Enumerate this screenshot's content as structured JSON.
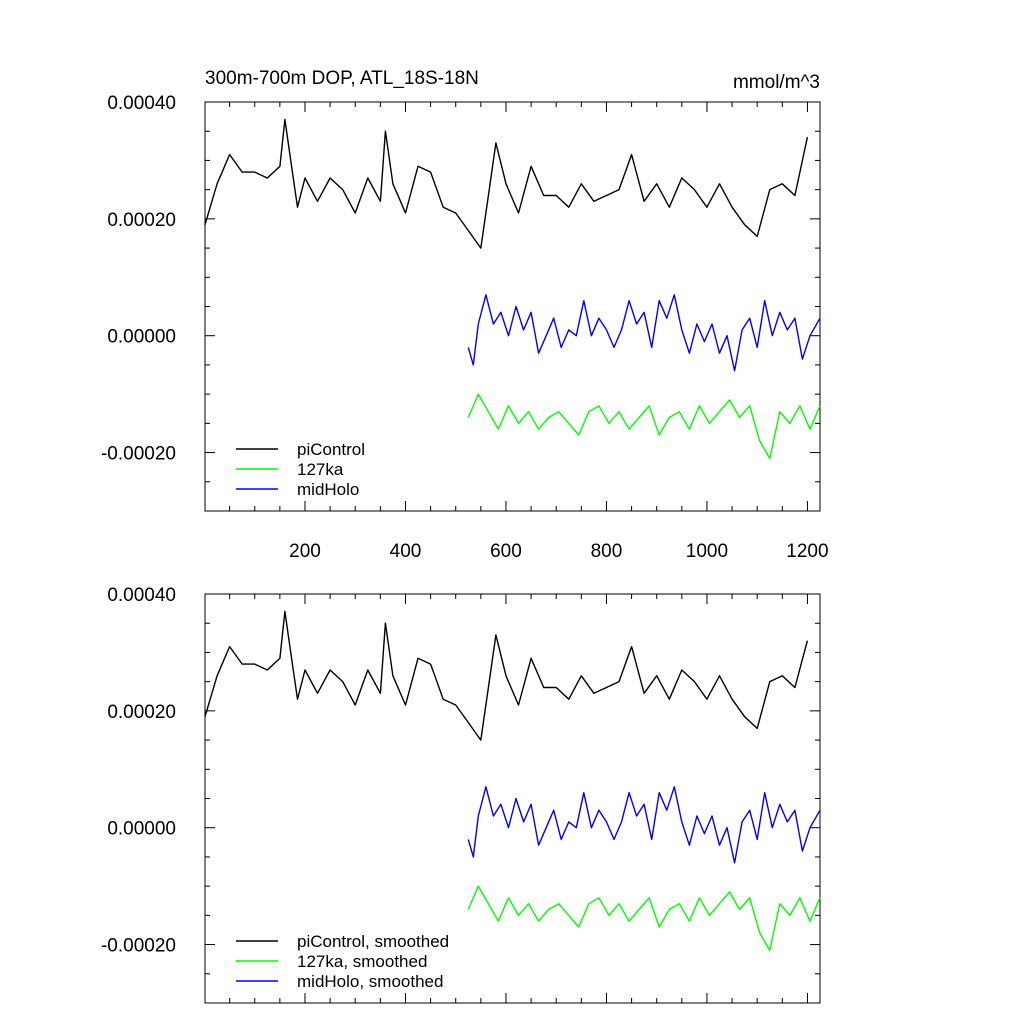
{
  "figure": {
    "title": "300m-700m DOP, ATL_18S-18N",
    "units": "mmol/m^3"
  },
  "chart_data": [
    {
      "type": "line",
      "title": "300m-700m DOP, ATL_18S-18N",
      "units_label": "mmol/m^3",
      "xlim": [
        1,
        1225
      ],
      "ylim": [
        -0.0003,
        0.0004
      ],
      "x_ticks": [
        200,
        400,
        600,
        800,
        1000,
        1200
      ],
      "x_tick_labels": [
        "200",
        "400",
        "600",
        "800",
        "1000",
        "1200"
      ],
      "y_ticks": [
        0.0004,
        0.0002,
        0.0,
        -0.0002
      ],
      "y_tick_labels": [
        "0.00040",
        "0.00020",
        "0.00000",
        "-0.00020"
      ],
      "grid": false,
      "legend_position": "bottom-left",
      "series": [
        {
          "name": "piControl",
          "color": "#000000",
          "x": [
            1,
            25,
            50,
            75,
            100,
            125,
            150,
            160,
            175,
            185,
            200,
            225,
            250,
            275,
            300,
            325,
            350,
            360,
            375,
            400,
            425,
            450,
            475,
            500,
            525,
            550,
            565,
            580,
            600,
            625,
            650,
            675,
            700,
            725,
            750,
            775,
            800,
            825,
            850,
            875,
            900,
            925,
            950,
            975,
            1000,
            1025,
            1050,
            1075,
            1100,
            1125,
            1150,
            1175,
            1200
          ],
          "y": [
            0.00019,
            0.00026,
            0.00031,
            0.00028,
            0.00028,
            0.00027,
            0.00029,
            0.00037,
            0.00028,
            0.00022,
            0.00027,
            0.00023,
            0.00027,
            0.00025,
            0.00021,
            0.00027,
            0.00023,
            0.00035,
            0.00026,
            0.00021,
            0.00029,
            0.00028,
            0.00022,
            0.00021,
            0.00018,
            0.00015,
            0.00024,
            0.00033,
            0.00026,
            0.00021,
            0.00029,
            0.00024,
            0.00024,
            0.00022,
            0.00026,
            0.00023,
            0.00024,
            0.00025,
            0.00031,
            0.00023,
            0.00026,
            0.00022,
            0.00027,
            0.00025,
            0.00022,
            0.00026,
            0.00022,
            0.00019,
            0.00017,
            0.00025,
            0.00026,
            0.00024,
            0.00034
          ]
        },
        {
          "name": "127ka",
          "color": "#00ff00",
          "x": [
            525,
            545,
            565,
            585,
            605,
            625,
            645,
            665,
            685,
            705,
            725,
            745,
            765,
            785,
            805,
            825,
            845,
            865,
            885,
            905,
            925,
            945,
            965,
            985,
            1005,
            1025,
            1045,
            1065,
            1085,
            1105,
            1125,
            1145,
            1165,
            1185,
            1205,
            1225
          ],
          "y": [
            -0.00014,
            -0.0001,
            -0.00013,
            -0.00016,
            -0.00012,
            -0.00015,
            -0.00013,
            -0.00016,
            -0.00014,
            -0.00013,
            -0.00015,
            -0.00017,
            -0.00013,
            -0.00012,
            -0.00015,
            -0.00013,
            -0.00016,
            -0.00014,
            -0.00012,
            -0.00017,
            -0.00014,
            -0.00013,
            -0.00016,
            -0.00012,
            -0.00015,
            -0.00013,
            -0.00011,
            -0.00014,
            -0.00012,
            -0.00018,
            -0.00021,
            -0.00013,
            -0.00015,
            -0.00012,
            -0.00016,
            -0.00012
          ]
        },
        {
          "name": "midHolo",
          "color": "#0000ff",
          "x": [
            525,
            535,
            545,
            560,
            575,
            590,
            605,
            620,
            635,
            650,
            665,
            680,
            695,
            710,
            725,
            740,
            755,
            770,
            785,
            800,
            815,
            830,
            845,
            860,
            875,
            890,
            905,
            920,
            935,
            950,
            965,
            980,
            995,
            1010,
            1025,
            1040,
            1055,
            1070,
            1085,
            1100,
            1115,
            1130,
            1145,
            1160,
            1175,
            1190,
            1205,
            1225
          ],
          "y": [
            -2e-05,
            -5e-05,
            2e-05,
            7e-05,
            2e-05,
            4e-05,
            0.0,
            5e-05,
            1e-05,
            4e-05,
            -3e-05,
            0.0,
            3e-05,
            -2e-05,
            1e-05,
            0.0,
            6e-05,
            0.0,
            3e-05,
            1e-05,
            -2e-05,
            1e-05,
            6e-05,
            2e-05,
            4e-05,
            -2e-05,
            6e-05,
            3e-05,
            7e-05,
            1e-05,
            -3e-05,
            2e-05,
            -1e-05,
            2e-05,
            -3e-05,
            0.0,
            -6e-05,
            1e-05,
            3e-05,
            -2e-05,
            6e-05,
            0.0,
            4e-05,
            1e-05,
            3e-05,
            -4e-05,
            0.0,
            3e-05
          ]
        }
      ]
    },
    {
      "type": "line",
      "xlim": [
        1,
        1225
      ],
      "ylim": [
        -0.0003,
        0.0004
      ],
      "x_ticks": [
        200,
        400,
        600,
        800,
        1000,
        1200
      ],
      "y_ticks": [
        0.0004,
        0.0002,
        0.0,
        -0.0002
      ],
      "y_tick_labels": [
        "0.00040",
        "0.00020",
        "0.00000",
        "-0.00020"
      ],
      "grid": false,
      "legend_position": "bottom-left",
      "series": [
        {
          "name": "piControl, smoothed",
          "color": "#000000",
          "x": [
            1,
            25,
            50,
            75,
            100,
            125,
            150,
            160,
            175,
            185,
            200,
            225,
            250,
            275,
            300,
            325,
            350,
            360,
            375,
            400,
            425,
            450,
            475,
            500,
            525,
            550,
            565,
            580,
            600,
            625,
            650,
            675,
            700,
            725,
            750,
            775,
            800,
            825,
            850,
            875,
            900,
            925,
            950,
            975,
            1000,
            1025,
            1050,
            1075,
            1100,
            1125,
            1150,
            1175,
            1200
          ],
          "y": [
            0.00019,
            0.00026,
            0.00031,
            0.00028,
            0.00028,
            0.00027,
            0.00029,
            0.00037,
            0.00028,
            0.00022,
            0.00027,
            0.00023,
            0.00027,
            0.00025,
            0.00021,
            0.00027,
            0.00023,
            0.00035,
            0.00026,
            0.00021,
            0.00029,
            0.00028,
            0.00022,
            0.00021,
            0.00018,
            0.00015,
            0.00024,
            0.00033,
            0.00026,
            0.00021,
            0.00029,
            0.00024,
            0.00024,
            0.00022,
            0.00026,
            0.00023,
            0.00024,
            0.00025,
            0.00031,
            0.00023,
            0.00026,
            0.00022,
            0.00027,
            0.00025,
            0.00022,
            0.00026,
            0.00022,
            0.00019,
            0.00017,
            0.00025,
            0.00026,
            0.00024,
            0.00032
          ]
        },
        {
          "name": "127ka, smoothed",
          "color": "#00ff00",
          "x": [
            525,
            545,
            565,
            585,
            605,
            625,
            645,
            665,
            685,
            705,
            725,
            745,
            765,
            785,
            805,
            825,
            845,
            865,
            885,
            905,
            925,
            945,
            965,
            985,
            1005,
            1025,
            1045,
            1065,
            1085,
            1105,
            1125,
            1145,
            1165,
            1185,
            1205,
            1225
          ],
          "y": [
            -0.00014,
            -0.0001,
            -0.00013,
            -0.00016,
            -0.00012,
            -0.00015,
            -0.00013,
            -0.00016,
            -0.00014,
            -0.00013,
            -0.00015,
            -0.00017,
            -0.00013,
            -0.00012,
            -0.00015,
            -0.00013,
            -0.00016,
            -0.00014,
            -0.00012,
            -0.00017,
            -0.00014,
            -0.00013,
            -0.00016,
            -0.00012,
            -0.00015,
            -0.00013,
            -0.00011,
            -0.00014,
            -0.00012,
            -0.00018,
            -0.00021,
            -0.00013,
            -0.00015,
            -0.00012,
            -0.00016,
            -0.00012
          ]
        },
        {
          "name": "midHolo, smoothed",
          "color": "#0000ff",
          "x": [
            525,
            535,
            545,
            560,
            575,
            590,
            605,
            620,
            635,
            650,
            665,
            680,
            695,
            710,
            725,
            740,
            755,
            770,
            785,
            800,
            815,
            830,
            845,
            860,
            875,
            890,
            905,
            920,
            935,
            950,
            965,
            980,
            995,
            1010,
            1025,
            1040,
            1055,
            1070,
            1085,
            1100,
            1115,
            1130,
            1145,
            1160,
            1175,
            1190,
            1205,
            1225
          ],
          "y": [
            -2e-05,
            -5e-05,
            2e-05,
            7e-05,
            2e-05,
            4e-05,
            0.0,
            5e-05,
            1e-05,
            4e-05,
            -3e-05,
            0.0,
            3e-05,
            -2e-05,
            1e-05,
            0.0,
            6e-05,
            0.0,
            3e-05,
            1e-05,
            -2e-05,
            1e-05,
            6e-05,
            2e-05,
            4e-05,
            -2e-05,
            6e-05,
            3e-05,
            7e-05,
            1e-05,
            -3e-05,
            2e-05,
            -1e-05,
            2e-05,
            -3e-05,
            0.0,
            -6e-05,
            1e-05,
            3e-05,
            -2e-05,
            6e-05,
            0.0,
            4e-05,
            1e-05,
            3e-05,
            -4e-05,
            0.0,
            3e-05
          ]
        }
      ]
    }
  ]
}
